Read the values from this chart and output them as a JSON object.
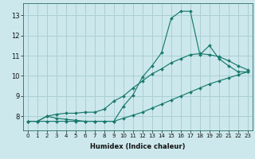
{
  "xlabel": "Humidex (Indice chaleur)",
  "bg_color": "#cce8ec",
  "grid_color": "#aacfd4",
  "line_color": "#1a7a6e",
  "x": [
    0,
    1,
    2,
    3,
    4,
    5,
    6,
    7,
    8,
    9,
    10,
    11,
    12,
    13,
    14,
    15,
    16,
    17,
    18,
    19,
    20,
    21,
    22,
    23
  ],
  "line1": [
    7.75,
    7.75,
    8.0,
    7.9,
    7.85,
    7.8,
    7.75,
    7.75,
    7.75,
    7.75,
    8.5,
    9.05,
    9.95,
    10.5,
    11.15,
    12.85,
    13.2,
    13.2,
    11.05,
    11.5,
    10.85,
    10.5,
    10.2,
    10.2
  ],
  "line2": [
    7.75,
    7.75,
    8.0,
    8.1,
    8.15,
    8.15,
    8.2,
    8.2,
    8.35,
    8.75,
    9.0,
    9.4,
    9.75,
    10.1,
    10.35,
    10.65,
    10.85,
    11.05,
    11.1,
    11.05,
    10.95,
    10.75,
    10.5,
    10.3
  ],
  "line3": [
    7.75,
    7.75,
    7.75,
    7.75,
    7.75,
    7.75,
    7.75,
    7.75,
    7.75,
    7.75,
    7.9,
    8.05,
    8.2,
    8.4,
    8.6,
    8.8,
    9.0,
    9.2,
    9.4,
    9.6,
    9.75,
    9.9,
    10.05,
    10.2
  ],
  "xlim": [
    -0.5,
    23.5
  ],
  "ylim": [
    7.3,
    13.6
  ],
  "yticks": [
    8,
    9,
    10,
    11,
    12,
    13
  ],
  "xticks": [
    0,
    1,
    2,
    3,
    4,
    5,
    6,
    7,
    8,
    9,
    10,
    11,
    12,
    13,
    14,
    15,
    16,
    17,
    18,
    19,
    20,
    21,
    22,
    23
  ]
}
